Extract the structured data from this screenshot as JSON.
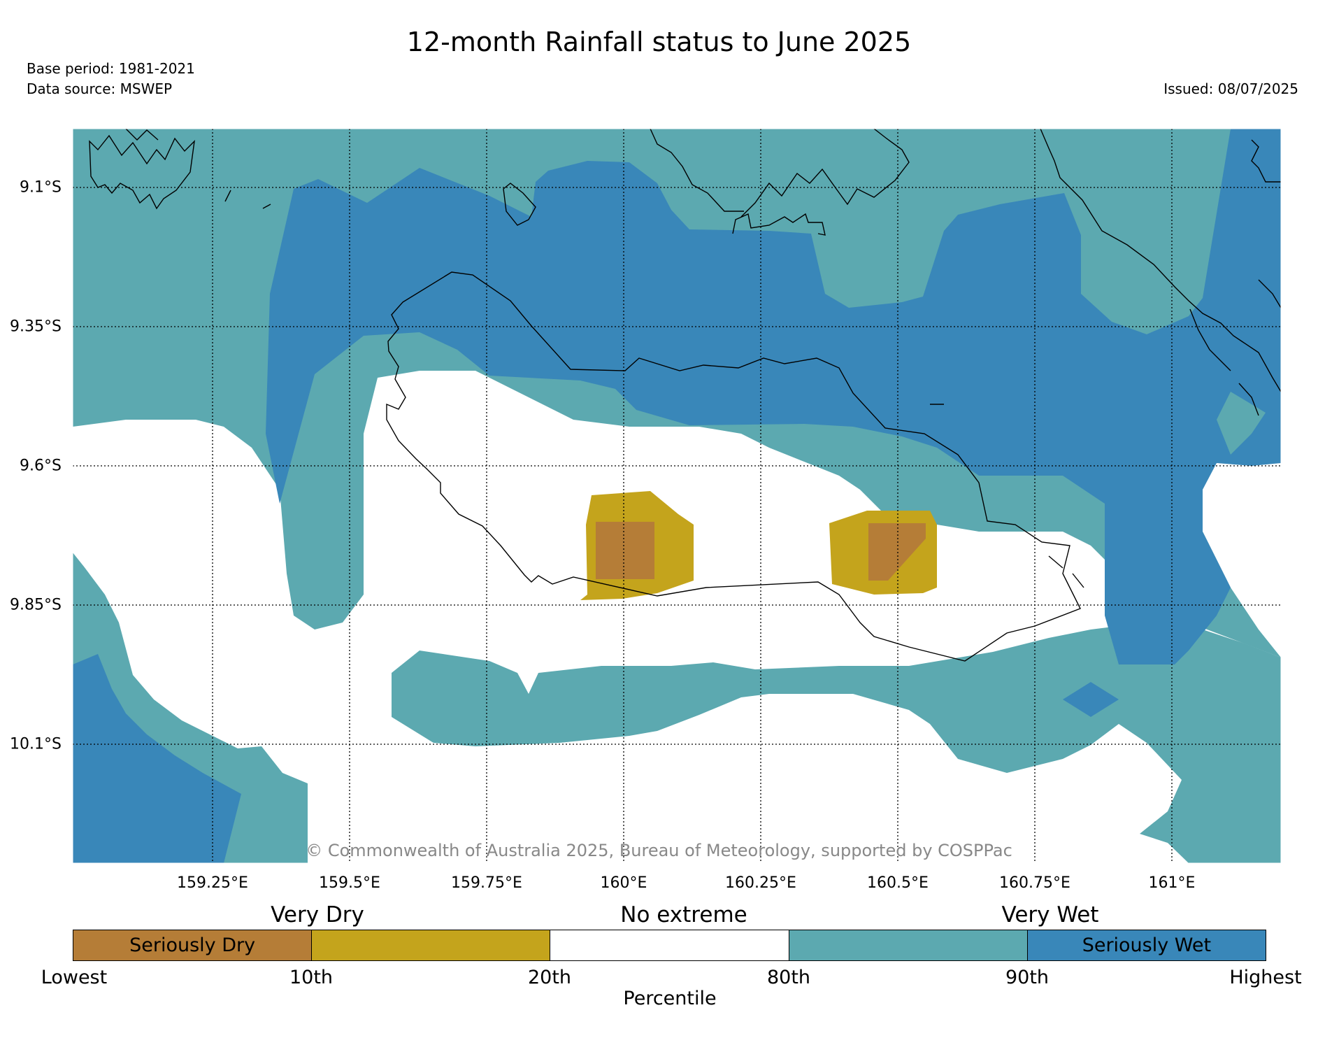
{
  "header": {
    "title": "12-month Rainfall status to June 2025",
    "base_period": "Base period: 1981-2021",
    "data_source": "Data source: MSWEP",
    "issued": "Issued: 08/07/2025"
  },
  "map": {
    "lat_labels": [
      "9.1°S",
      "9.35°S",
      "9.6°S",
      "9.85°S",
      "10.1°S"
    ],
    "lon_labels": [
      "159.25°E",
      "159.5°E",
      "159.75°E",
      "160°E",
      "160.25°E",
      "160.5°E",
      "160.75°E",
      "161°E"
    ],
    "copyright": "© Commonwealth of Australia 2025, Bureau of Meteorology, supported by COSPPac",
    "colors": {
      "seriously_dry": "#b57d37",
      "very_dry": "#c4a41c",
      "no_extreme": "#ffffff",
      "very_wet": "#5ca9b0",
      "seriously_wet": "#3987b9"
    }
  },
  "legend": {
    "groups": [
      "Very Dry",
      "No extreme",
      "Very Wet"
    ],
    "cells": [
      {
        "label": "Seriously Dry",
        "color": "#b57d37"
      },
      {
        "label": "",
        "color": "#c4a41c"
      },
      {
        "label": "",
        "color": "#ffffff"
      },
      {
        "label": "",
        "color": "#5ca9b0"
      },
      {
        "label": "Seriously Wet",
        "color": "#3987b9"
      }
    ],
    "ticks": [
      "Lowest",
      "10th",
      "20th",
      "80th",
      "90th",
      "Highest"
    ],
    "axis_label": "Percentile"
  }
}
